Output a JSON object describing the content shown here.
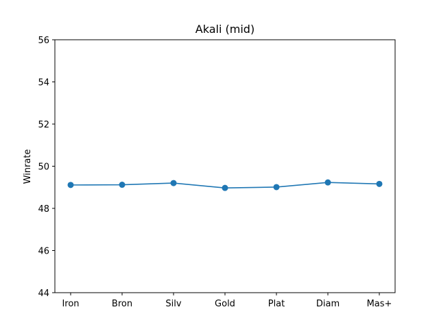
{
  "chart_data": {
    "type": "line",
    "title": "Akali (mid)",
    "xlabel": "",
    "ylabel": "Winrate",
    "categories": [
      "Iron",
      "Bron",
      "Silv",
      "Gold",
      "Plat",
      "Diam",
      "Mas+"
    ],
    "series": [
      {
        "values": [
          49.11,
          49.12,
          49.2,
          48.97,
          49.01,
          49.23,
          49.16
        ],
        "color": "#1f77b4"
      }
    ],
    "ylim": [
      44,
      56
    ],
    "yticks": [
      "44",
      "46",
      "48",
      "50",
      "52",
      "54",
      "56"
    ],
    "grid": false,
    "legend": "none"
  }
}
